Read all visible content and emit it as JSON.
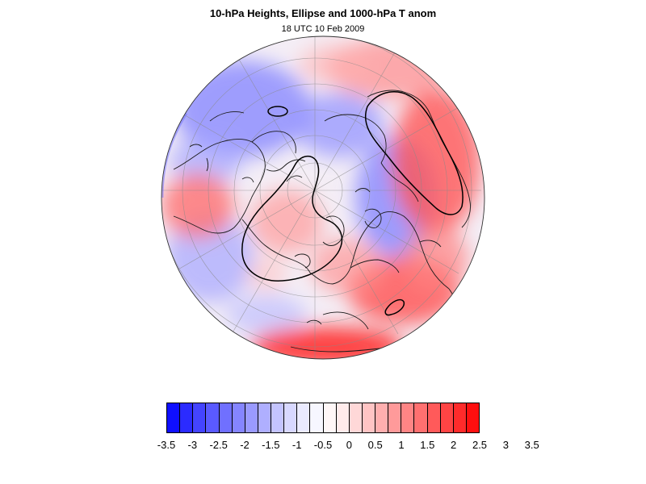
{
  "header": {
    "title": "10-hPa Heights, Ellipse and 1000-hPa T anom",
    "subtitle": "18 UTC 10 Feb 2009"
  },
  "map": {
    "projection": "orthographic-north-polar",
    "field": "1000-hPa T anom",
    "overlays": [
      "coastlines",
      "graticule",
      "10-hPa height ellipse contour"
    ]
  },
  "colorbar": {
    "colors": [
      "#0f0fff",
      "#2b2bff",
      "#4444ff",
      "#5a5aff",
      "#7070ff",
      "#8585ff",
      "#9a9aff",
      "#afafff",
      "#c4c4ff",
      "#d8d8ff",
      "#ebebff",
      "#f7f7ff",
      "#fff7f7",
      "#ffebeb",
      "#ffd8d8",
      "#ffc4c4",
      "#ffafaf",
      "#ff9a9a",
      "#ff8585",
      "#ff7070",
      "#ff5a5a",
      "#ff4444",
      "#ff2b2b",
      "#ff0f0f"
    ],
    "labels": [
      "-3.5",
      "-3",
      "-2.5",
      "-2",
      "-1.5",
      "-1",
      "-0.5",
      "0",
      "0.5",
      "1",
      "1.5",
      "2",
      "2.5",
      "3",
      "3.5"
    ]
  }
}
